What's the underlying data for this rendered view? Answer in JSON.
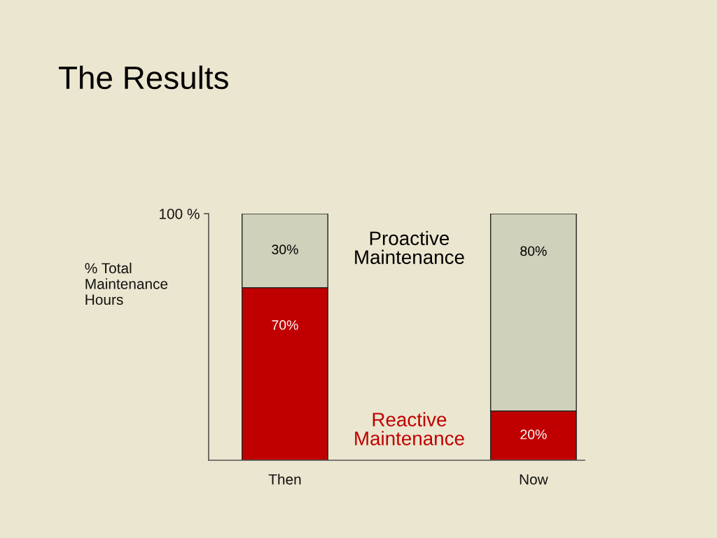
{
  "chart_data": {
    "type": "bar",
    "title": "The Results",
    "ylabel": "% Total\nMaintenance\nHours",
    "categories": [
      "Then",
      "Now"
    ],
    "stacked": true,
    "series": [
      {
        "name": "Reactive\nMaintenance",
        "color": "#c00000",
        "values": [
          70,
          20
        ],
        "value_labels": [
          "70%",
          "20%"
        ]
      },
      {
        "name": "Proactive\nMaintenance",
        "color": "#cfd1ba",
        "values": [
          30,
          80
        ],
        "value_labels": [
          "30%",
          "80%"
        ]
      }
    ],
    "ylim": [
      0,
      100
    ],
    "yticks": [
      {
        "value": 100,
        "label": "100 %"
      }
    ],
    "grid": false,
    "legend": false
  }
}
